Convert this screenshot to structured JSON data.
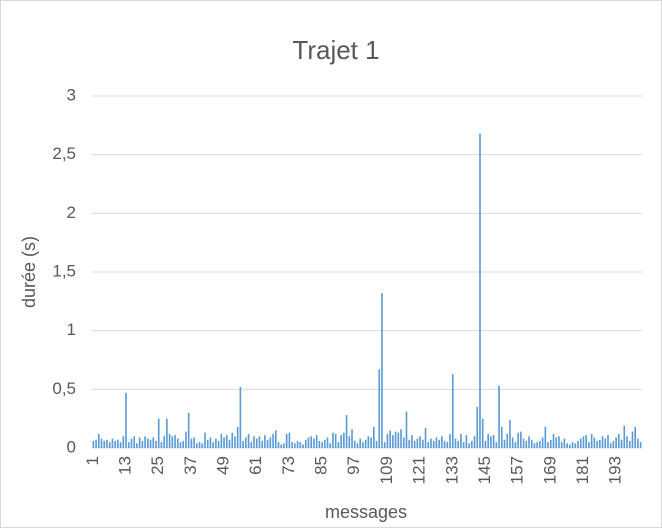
{
  "chart_data": {
    "type": "bar",
    "title": "Trajet 1",
    "x_label": "messages",
    "y_label": "durée (s)",
    "color": "#5b9bd5",
    "grid": true,
    "categories": [
      "1",
      null,
      null,
      null,
      null,
      null,
      null,
      null,
      null,
      null,
      null,
      null,
      "13",
      null,
      null,
      null,
      null,
      null,
      null,
      null,
      null,
      null,
      null,
      null,
      "25",
      null,
      null,
      null,
      null,
      null,
      null,
      null,
      null,
      null,
      null,
      null,
      "37",
      null,
      null,
      null,
      null,
      null,
      null,
      null,
      null,
      null,
      null,
      null,
      "49",
      null,
      null,
      null,
      null,
      null,
      null,
      null,
      null,
      null,
      null,
      null,
      "61",
      null,
      null,
      null,
      null,
      null,
      null,
      null,
      null,
      null,
      null,
      null,
      "73",
      null,
      null,
      null,
      null,
      null,
      null,
      null,
      null,
      null,
      null,
      null,
      "85",
      null,
      null,
      null,
      null,
      null,
      null,
      null,
      null,
      null,
      null,
      null,
      "97",
      null,
      null,
      null,
      null,
      null,
      null,
      null,
      null,
      null,
      null,
      null,
      "109",
      null,
      null,
      null,
      null,
      null,
      null,
      null,
      null,
      null,
      null,
      null,
      "121",
      null,
      null,
      null,
      null,
      null,
      null,
      null,
      null,
      null,
      null,
      null,
      "133",
      null,
      null,
      null,
      null,
      null,
      null,
      null,
      null,
      null,
      null,
      null,
      "145",
      null,
      null,
      null,
      null,
      null,
      null,
      null,
      null,
      null,
      null,
      null,
      "157",
      null,
      null,
      null,
      null,
      null,
      null,
      null,
      null,
      null,
      null,
      null,
      "169",
      null,
      null,
      null,
      null,
      null,
      null,
      null,
      null,
      null,
      null,
      null,
      "181",
      null,
      null,
      null,
      null,
      null,
      null,
      null,
      null,
      null,
      null,
      null,
      "193",
      null,
      null,
      null,
      null,
      null,
      null,
      null,
      null,
      null
    ],
    "values": [
      0.06,
      0.07,
      0.12,
      0.08,
      0.06,
      0.07,
      0.05,
      0.08,
      0.06,
      0.07,
      0.05,
      0.1,
      0.47,
      0.05,
      0.08,
      0.1,
      0.04,
      0.09,
      0.06,
      0.1,
      0.08,
      0.07,
      0.09,
      0.06,
      0.25,
      0.05,
      0.1,
      0.25,
      0.12,
      0.1,
      0.11,
      0.08,
      0.05,
      0.06,
      0.14,
      0.3,
      0.08,
      0.09,
      0.04,
      0.05,
      0.04,
      0.13,
      0.07,
      0.09,
      0.05,
      0.08,
      0.06,
      0.12,
      0.09,
      0.11,
      0.07,
      0.13,
      0.1,
      0.18,
      0.52,
      0.06,
      0.09,
      0.12,
      0.05,
      0.1,
      0.08,
      0.1,
      0.06,
      0.11,
      0.07,
      0.09,
      0.12,
      0.15,
      0.05,
      0.03,
      0.04,
      0.12,
      0.13,
      0.05,
      0.04,
      0.06,
      0.05,
      0.03,
      0.07,
      0.09,
      0.1,
      0.08,
      0.11,
      0.06,
      0.05,
      0.07,
      0.09,
      0.04,
      0.13,
      0.12,
      0.05,
      0.11,
      0.13,
      0.28,
      0.1,
      0.16,
      0.06,
      0.04,
      0.08,
      0.05,
      0.07,
      0.1,
      0.09,
      0.18,
      0.06,
      0.67,
      1.32,
      0.05,
      0.12,
      0.15,
      0.11,
      0.14,
      0.13,
      0.16,
      0.09,
      0.31,
      0.07,
      0.11,
      0.06,
      0.08,
      0.1,
      0.07,
      0.17,
      0.05,
      0.08,
      0.06,
      0.09,
      0.07,
      0.1,
      0.06,
      0.05,
      0.12,
      0.63,
      0.08,
      0.06,
      0.12,
      0.05,
      0.11,
      0.04,
      0.06,
      0.1,
      0.35,
      2.68,
      0.25,
      0.06,
      0.12,
      0.1,
      0.11,
      0.05,
      0.53,
      0.18,
      0.07,
      0.12,
      0.24,
      0.09,
      0.05,
      0.13,
      0.14,
      0.08,
      0.06,
      0.1,
      0.07,
      0.04,
      0.05,
      0.06,
      0.09,
      0.18,
      0.05,
      0.07,
      0.12,
      0.09,
      0.1,
      0.05,
      0.08,
      0.04,
      0.03,
      0.05,
      0.04,
      0.06,
      0.08,
      0.1,
      0.11,
      0.05,
      0.12,
      0.09,
      0.06,
      0.07,
      0.1,
      0.08,
      0.11,
      0.04,
      0.06,
      0.09,
      0.12,
      0.07,
      0.19,
      0.1,
      0.06,
      0.14,
      0.18,
      0.08,
      0.05
    ],
    "ylim": [
      0,
      3
    ],
    "yticks": [
      0,
      {
        "value": 0.5,
        "label": "0,5"
      },
      1,
      {
        "value": 1.5,
        "label": "1,5"
      },
      2,
      {
        "value": 2.5,
        "label": "2,5"
      },
      3
    ]
  }
}
